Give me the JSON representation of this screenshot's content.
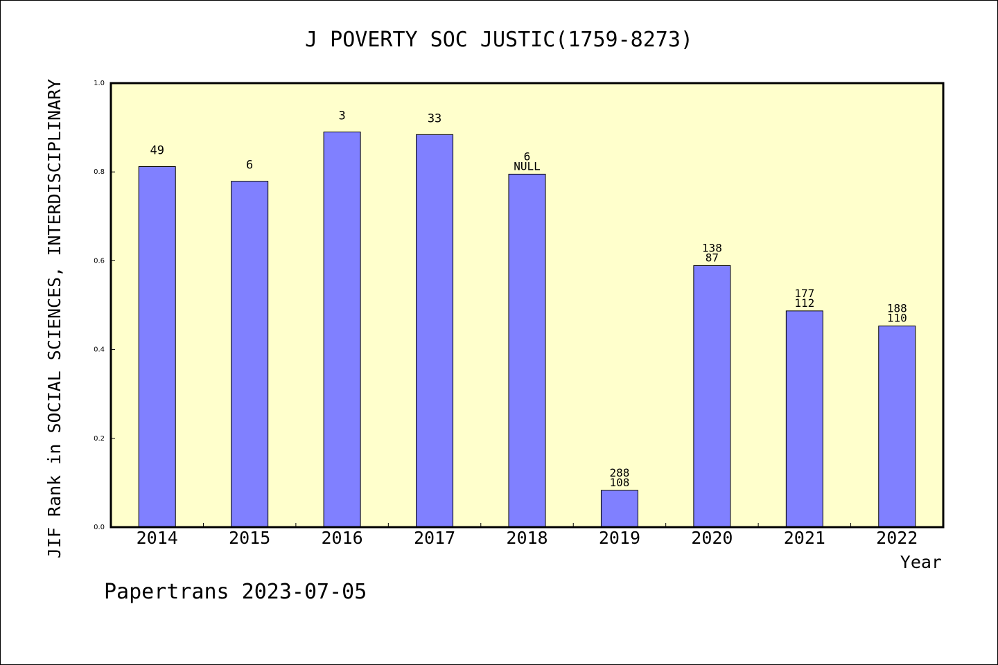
{
  "chart_data": {
    "type": "bar",
    "title": "J POVERTY SOC JUSTIC(1759-8273)",
    "xlabel": "Year",
    "ylabel": "JIF Rank in SOCIAL SCIENCES, INTERDISCIPLINARY",
    "ylim": [
      0,
      1.0
    ],
    "yticks": [
      "0.0",
      "0.2",
      "0.4",
      "0.6",
      "0.8",
      "1.0"
    ],
    "categories": [
      "2014",
      "2015",
      "2016",
      "2017",
      "2018",
      "2019",
      "2020",
      "2021",
      "2022"
    ],
    "values": [
      0.812,
      0.779,
      0.89,
      0.884,
      0.795,
      0.083,
      0.589,
      0.487,
      0.453
    ],
    "bar_labels": [
      [
        "49"
      ],
      [
        "6"
      ],
      [
        "3"
      ],
      [
        "33"
      ],
      [
        "6",
        "NULL"
      ],
      [
        "288",
        "108"
      ],
      [
        "138",
        "87"
      ],
      [
        "177",
        "112"
      ],
      [
        "188",
        "110"
      ]
    ],
    "grid": false,
    "bar_color": "#8080ff",
    "plot_background": "#ffffcc"
  },
  "footer": {
    "watermark": "Papertrans 2023-07-05"
  }
}
